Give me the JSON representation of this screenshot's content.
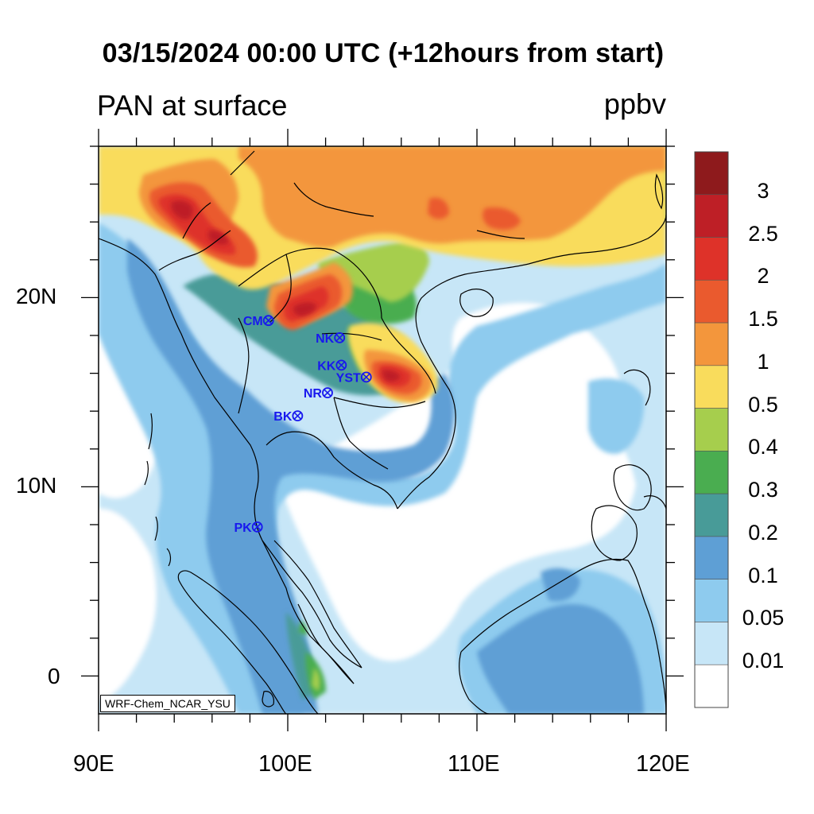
{
  "title": "03/15/2024 00:00 UTC (+12hours from start)",
  "variable": "PAN at surface",
  "units": "ppbv",
  "credit": "WRF-Chem_NCAR_YSU",
  "axes": {
    "x_ticks": [
      "90E",
      "100E",
      "110E",
      "120E"
    ],
    "y_ticks": [
      "20N",
      "10N",
      "0"
    ],
    "lon_range": [
      90,
      120
    ],
    "lat_range": [
      -2,
      28
    ]
  },
  "colorbar": {
    "levels": [
      "3",
      "2.5",
      "2",
      "1.5",
      "1",
      "0.5",
      "0.4",
      "0.3",
      "0.2",
      "0.1",
      "0.05",
      "0.01"
    ],
    "colors_top_to_bottom": [
      "#8e1a1c",
      "#be1f26",
      "#de3229",
      "#ea5a2e",
      "#f3963c",
      "#f9dc5c",
      "#a6ce4d",
      "#4aad50",
      "#489b98",
      "#5e9fd5",
      "#8ecbee",
      "#c7e6f7",
      "#ffffff"
    ]
  },
  "stations": [
    {
      "label": "CM",
      "lon": 98.98,
      "lat": 18.79
    },
    {
      "label": "NK",
      "lon": 102.74,
      "lat": 17.88
    },
    {
      "label": "KK",
      "lon": 102.83,
      "lat": 16.43
    },
    {
      "label": "YST",
      "lon": 104.15,
      "lat": 15.8
    },
    {
      "label": "NR",
      "lon": 102.1,
      "lat": 14.97
    },
    {
      "label": "BK",
      "lon": 100.52,
      "lat": 13.75
    },
    {
      "label": "PK",
      "lon": 98.39,
      "lat": 7.88
    }
  ]
}
